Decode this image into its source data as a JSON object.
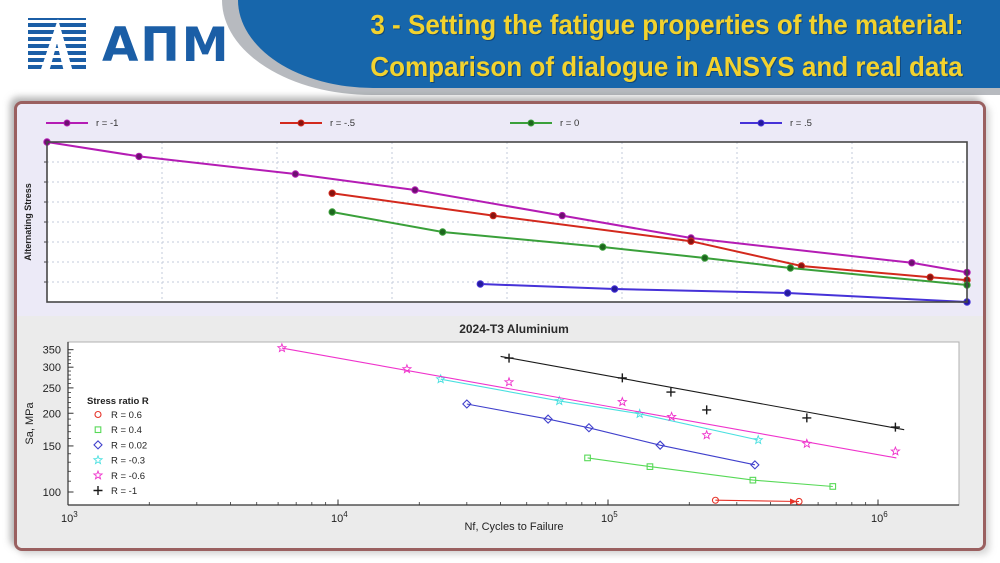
{
  "header": {
    "logo_text": "АПМ",
    "title_line1": "3 - Setting the fatigue properties of the material:",
    "title_line2": "Comparison of dialogue in ANSYS and real data",
    "banner_color": "#1766ab",
    "title_color": "#f2d22e",
    "logo_color": "#1b5ea6",
    "swoosh_color": "#b7babf",
    "frame_color": "#9a6060"
  },
  "chart_data": [
    {
      "type": "line",
      "title": "",
      "xlabel": "",
      "ylabel": "Alternating Stress",
      "axes_note": "ANSYS S-N dialogue curves; axes unlabeled, dashed grid; points are fractional positions of the plot box (x left-to-right, y top-to-bottom)",
      "legend_position": "top-row",
      "series": [
        {
          "name": "r = -1",
          "color": "#b41cb4",
          "marker_color": "#6d1070",
          "points_frac": [
            [
              0.0,
              0.0
            ],
            [
              0.1,
              0.09
            ],
            [
              0.27,
              0.2
            ],
            [
              0.4,
              0.3
            ],
            [
              0.56,
              0.46
            ],
            [
              0.7,
              0.6
            ],
            [
              0.94,
              0.755
            ],
            [
              1.0,
              0.815
            ]
          ]
        },
        {
          "name": "r = -.5",
          "color": "#d3291d",
          "marker_color": "#871410",
          "points_frac": [
            [
              0.31,
              0.32
            ],
            [
              0.485,
              0.46
            ],
            [
              0.7,
              0.62
            ],
            [
              0.82,
              0.775
            ],
            [
              0.96,
              0.845
            ],
            [
              1.0,
              0.863
            ]
          ]
        },
        {
          "name": "r = 0",
          "color": "#3aa03a",
          "marker_color": "#1e661e",
          "points_frac": [
            [
              0.31,
              0.4375
            ],
            [
              0.43,
              0.5625
            ],
            [
              0.604,
              0.656
            ],
            [
              0.715,
              0.725
            ],
            [
              0.808,
              0.7875
            ],
            [
              1.0,
              0.894
            ]
          ]
        },
        {
          "name": "r = .5",
          "color": "#4632d8",
          "marker_color": "#241a9c",
          "points_frac": [
            [
              0.471,
              0.8875
            ],
            [
              0.617,
              0.919
            ],
            [
              0.805,
              0.944
            ],
            [
              1.0,
              1.0
            ]
          ]
        }
      ]
    },
    {
      "type": "scatter",
      "title": "2024-T3 Aluminium",
      "xlabel": "Nf, Cycles to Failure",
      "ylabel": "Sa, MPa",
      "xscale": "log",
      "yscale": "log",
      "xlim": [
        1000,
        2000000
      ],
      "ylim": [
        89,
        375
      ],
      "x_ticks": [
        {
          "value": 1000,
          "base": "10",
          "exp": "3"
        },
        {
          "value": 10000,
          "base": "10",
          "exp": "4"
        },
        {
          "value": 100000,
          "base": "10",
          "exp": "5"
        },
        {
          "value": 1000000,
          "base": "10",
          "exp": "6"
        }
      ],
      "y_ticks": [
        350,
        300,
        250,
        200,
        150,
        100
      ],
      "legend_title": "Stress ratio R",
      "series": [
        {
          "label": "R = 0.6",
          "color": "#e63329",
          "marker": "circle",
          "points": [
            [
              250000,
              93
            ],
            [
              510000,
              92
            ]
          ],
          "line": "through",
          "arrow": true
        },
        {
          "label": "R = 0.4",
          "color": "#57d957",
          "marker": "square",
          "points": [
            [
              84000,
              135
            ],
            [
              143000,
              125
            ],
            [
              344000,
              111
            ],
            [
              680000,
              105
            ]
          ],
          "line": "through"
        },
        {
          "label": "R = 0.02",
          "color": "#4040cc",
          "marker": "diamond",
          "points": [
            [
              30000,
              217
            ],
            [
              60000,
              190
            ],
            [
              85000,
              176
            ],
            [
              156000,
              151
            ],
            [
              350000,
              127
            ]
          ],
          "line": "through"
        },
        {
          "label": "R = -0.3",
          "color": "#4ae0e0",
          "marker": "star",
          "points": [
            [
              24000,
              270
            ],
            [
              66000,
              223
            ],
            [
              131000,
              199
            ],
            [
              360000,
              158
            ]
          ],
          "line": "through"
        },
        {
          "label": "R = -0.6",
          "color": "#ef33cc",
          "marker": "star",
          "points": [
            [
              6200,
              355
            ],
            [
              18000,
              295
            ],
            [
              43000,
              263
            ],
            [
              113000,
              221
            ],
            [
              172000,
              194
            ],
            [
              232000,
              165
            ],
            [
              545000,
              153
            ],
            [
              1160000,
              143
            ]
          ],
          "fit_line": [
            [
              6200,
              355
            ],
            [
              1170000,
              135
            ]
          ]
        },
        {
          "label": "R = -1",
          "color": "#1a1a1a",
          "marker": "plus",
          "points": [
            [
              43000,
              325
            ],
            [
              113000,
              273
            ],
            [
              171000,
              241
            ],
            [
              232000,
              206
            ],
            [
              545000,
              192
            ],
            [
              1160000,
              177
            ]
          ],
          "fit_line": [
            [
              40000,
              330
            ],
            [
              1250000,
              173
            ]
          ]
        }
      ]
    }
  ]
}
